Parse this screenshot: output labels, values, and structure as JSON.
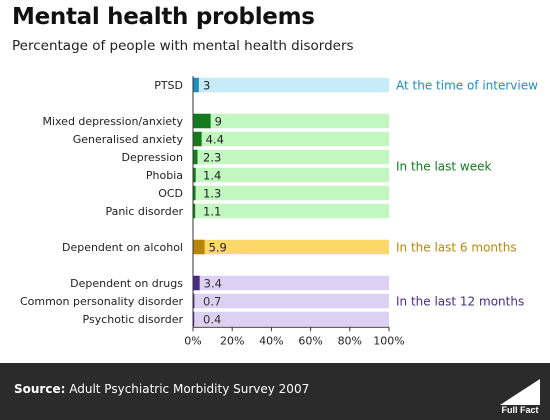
{
  "title": "Mental health problems",
  "subtitle": "Percentage of people with mental health disorders",
  "source": {
    "label": "Source:",
    "text": "Adult Psychiatric Morbidity Survey 2007"
  },
  "logo_text": "Full Fact",
  "chart_data": {
    "type": "bar",
    "orientation": "horizontal",
    "xlim": [
      0,
      100
    ],
    "x_ticks": [
      "0%",
      "20%",
      "40%",
      "60%",
      "80%",
      "100%"
    ],
    "grid": false,
    "groups": [
      {
        "label": "At the time of interview",
        "color": "#1a8fc2",
        "track_color": "#c6ecfa",
        "items": [
          {
            "category": "PTSD",
            "value": 3
          }
        ]
      },
      {
        "label": "In the last  week",
        "color": "#157a1e",
        "track_color": "#c2f8c0",
        "items": [
          {
            "category": "Mixed depression/anxiety",
            "value": 9
          },
          {
            "category": "Generalised anxiety",
            "value": 4.4
          },
          {
            "category": "Depression",
            "value": 2.3
          },
          {
            "category": "Phobia",
            "value": 1.4
          },
          {
            "category": "OCD",
            "value": 1.3
          },
          {
            "category": "Panic disorder",
            "value": 1.1
          }
        ]
      },
      {
        "label": "In the last  6 months",
        "color": "#b8860b",
        "track_color": "#fcd86a",
        "items": [
          {
            "category": "Dependent on alcohol",
            "value": 5.9
          }
        ]
      },
      {
        "label": "In the last  12 months",
        "color": "#4a2a82",
        "track_color": "#ddd0f2",
        "items": [
          {
            "category": "Dependent on drugs",
            "value": 3.4
          },
          {
            "category": "Common personality disorder",
            "value": 0.7
          },
          {
            "category": "Psychotic disorder",
            "value": 0.4
          }
        ]
      }
    ]
  }
}
